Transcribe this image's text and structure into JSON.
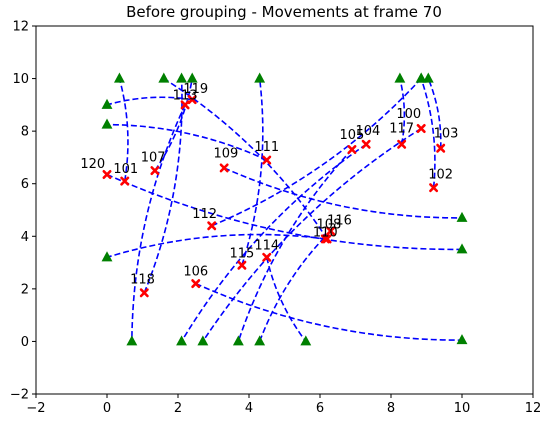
{
  "chart_data": {
    "type": "scatter",
    "title": "Before grouping - Movements at frame 70",
    "xlabel": "",
    "ylabel": "",
    "xlim": [
      -2,
      12
    ],
    "ylim": [
      -2,
      12
    ],
    "xticks": [
      "−2",
      "0",
      "2",
      "4",
      "6",
      "8",
      "10",
      "12"
    ],
    "yticks": [
      "−2",
      "0",
      "2",
      "4",
      "6",
      "8",
      "10",
      "12"
    ],
    "grid": false,
    "colors": {
      "path": "#0000ff",
      "current": "#ff0000",
      "target": "#008000",
      "axes": "#000000"
    },
    "markers": {
      "current": "x-marker",
      "target": "triangle-marker"
    },
    "agents": [
      {
        "id": "100",
        "label": "100",
        "pos": [
          8.3,
          7.5
        ],
        "target": [
          8.25,
          10.0
        ],
        "label_pos": [
          8.15,
          8.5
        ]
      },
      {
        "id": "101",
        "label": "101",
        "pos": [
          0.5,
          6.1
        ],
        "target": [
          0.35,
          10.0
        ],
        "label_pos": [
          0.18,
          6.4
        ]
      },
      {
        "id": "102",
        "label": "102",
        "pos": [
          9.2,
          5.85
        ],
        "target": [
          8.85,
          10.0
        ],
        "label_pos": [
          9.05,
          6.2
        ]
      },
      {
        "id": "103",
        "label": "103",
        "pos": [
          9.4,
          7.35
        ],
        "target": [
          9.05,
          10.0
        ],
        "label_pos": [
          9.2,
          7.75
        ]
      },
      {
        "id": "104",
        "label": "104",
        "pos": [
          7.3,
          7.5
        ],
        "target": [
          2.1,
          0.0
        ],
        "label_pos": [
          7.0,
          7.85
        ]
      },
      {
        "id": "105",
        "label": "105",
        "pos": [
          6.9,
          7.3
        ],
        "target": [
          3.7,
          0.0
        ],
        "label_pos": [
          6.55,
          7.7
        ]
      },
      {
        "id": "106",
        "label": "106",
        "pos": [
          2.5,
          2.2
        ],
        "target": [
          10.0,
          0.05
        ],
        "label_pos": [
          2.15,
          2.5
        ]
      },
      {
        "id": "107",
        "label": "107",
        "pos": [
          1.35,
          6.5
        ],
        "target": [
          2.4,
          10.0
        ],
        "label_pos": [
          0.95,
          6.85
        ]
      },
      {
        "id": "108",
        "label": "108",
        "pos": [
          6.2,
          3.9
        ],
        "target": [
          1.6,
          10.0
        ],
        "label_pos": [
          5.9,
          4.3
        ]
      },
      {
        "id": "109",
        "label": "109",
        "pos": [
          3.3,
          6.6
        ],
        "target": [
          10.0,
          4.7
        ],
        "label_pos": [
          3.0,
          7.0
        ]
      },
      {
        "id": "110",
        "label": "110",
        "pos": [
          6.15,
          3.9
        ],
        "target": [
          0.0,
          3.2
        ],
        "label_pos": [
          5.8,
          4.0
        ]
      },
      {
        "id": "111",
        "label": "111",
        "pos": [
          4.5,
          6.9
        ],
        "target": [
          0.0,
          8.25
        ],
        "label_pos": [
          4.15,
          7.25
        ]
      },
      {
        "id": "112",
        "label": "112",
        "pos": [
          2.95,
          4.4
        ],
        "target": [
          8.85,
          10.0
        ],
        "label_pos": [
          2.4,
          4.7
        ]
      },
      {
        "id": "113",
        "label": "113",
        "pos": [
          2.2,
          9.0
        ],
        "target": [
          0.7,
          0.0
        ],
        "label_pos": [
          1.85,
          9.2
        ]
      },
      {
        "id": "114",
        "label": "114",
        "pos": [
          4.5,
          3.2
        ],
        "target": [
          5.6,
          0.0
        ],
        "label_pos": [
          4.15,
          3.5
        ]
      },
      {
        "id": "115",
        "label": "115",
        "pos": [
          3.8,
          2.9
        ],
        "target": [
          4.3,
          10.0
        ],
        "label_pos": [
          3.45,
          3.2
        ]
      },
      {
        "id": "116",
        "label": "116",
        "pos": [
          6.3,
          4.2
        ],
        "target": [
          4.3,
          0.0
        ],
        "label_pos": [
          6.2,
          4.45
        ]
      },
      {
        "id": "117",
        "label": "117",
        "pos": [
          8.85,
          8.1
        ],
        "target": [
          2.7,
          0.0
        ],
        "label_pos": [
          7.95,
          7.95
        ]
      },
      {
        "id": "118",
        "label": "118",
        "pos": [
          1.05,
          1.85
        ],
        "target": [
          2.1,
          10.0
        ],
        "label_pos": [
          0.65,
          2.2
        ]
      },
      {
        "id": "119",
        "label": "119",
        "pos": [
          2.4,
          9.2
        ],
        "target": [
          0.0,
          9.0
        ],
        "label_pos": [
          2.15,
          9.45
        ]
      },
      {
        "id": "120",
        "label": "120",
        "pos": [
          0.0,
          6.35
        ],
        "target": [
          10.0,
          3.5
        ],
        "label_pos": [
          -0.75,
          6.6
        ]
      }
    ]
  }
}
